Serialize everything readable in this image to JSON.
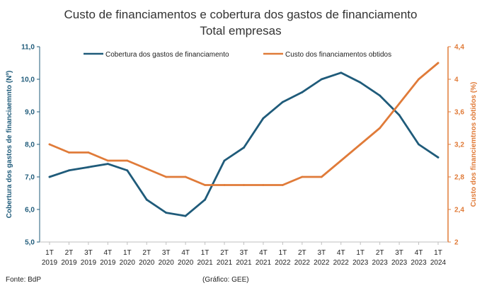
{
  "chart_data": {
    "type": "line",
    "title": "Custo de financiamentos e cobertura dos gastos de financiamento",
    "subtitle": "Total empresas",
    "categories": [
      "1T 2019",
      "2T 2019",
      "3T 2019",
      "4T 2019",
      "1T 2020",
      "2T 2020",
      "3T 2020",
      "4T 2020",
      "1T 2021",
      "2T 2021",
      "3T 2021",
      "4T 2021",
      "1T 2022",
      "2T 2022",
      "3T 2022",
      "4T 2022",
      "1T 2023",
      "2T 2023",
      "3T 2023",
      "4T 2023",
      "1T 2024"
    ],
    "series": [
      {
        "name": "Cobertura dos gastos de financiamento",
        "axis": "left",
        "color": "#1f5b7a",
        "values": [
          7.0,
          7.2,
          7.3,
          7.4,
          7.2,
          6.3,
          5.9,
          5.8,
          6.3,
          7.5,
          7.9,
          8.8,
          9.3,
          9.6,
          10.0,
          10.2,
          9.9,
          9.5,
          8.9,
          8.0,
          7.6
        ]
      },
      {
        "name": "Custo dos financiamentos obtidos",
        "axis": "right",
        "color": "#e07b39",
        "values": [
          3.2,
          3.1,
          3.1,
          3.0,
          3.0,
          2.9,
          2.8,
          2.8,
          2.7,
          2.7,
          2.7,
          2.7,
          2.7,
          2.8,
          2.8,
          3.0,
          3.2,
          3.4,
          3.7,
          4.0,
          4.2
        ]
      }
    ],
    "y_left": {
      "label": "Cobertura dos gastos de financiaemnto (Nº)",
      "ylim": [
        5.0,
        11.0
      ],
      "ticks": [
        "5,0",
        "6,0",
        "7,0",
        "8,0",
        "9,0",
        "10,0",
        "11,0"
      ],
      "color": "#1f5b7a"
    },
    "y_right": {
      "label": "Custo dos financiemtnos obtidos (%)",
      "ylim": [
        2.0,
        4.4
      ],
      "ticks": [
        "2",
        "2,4",
        "2,8",
        "3,2",
        "3,6",
        "4",
        "4,4"
      ],
      "color": "#e07b39"
    },
    "legend_position": "top",
    "grid": false
  },
  "footer": {
    "source": "Fonte: BdP",
    "credit": "(Gráfico: GEE)"
  }
}
